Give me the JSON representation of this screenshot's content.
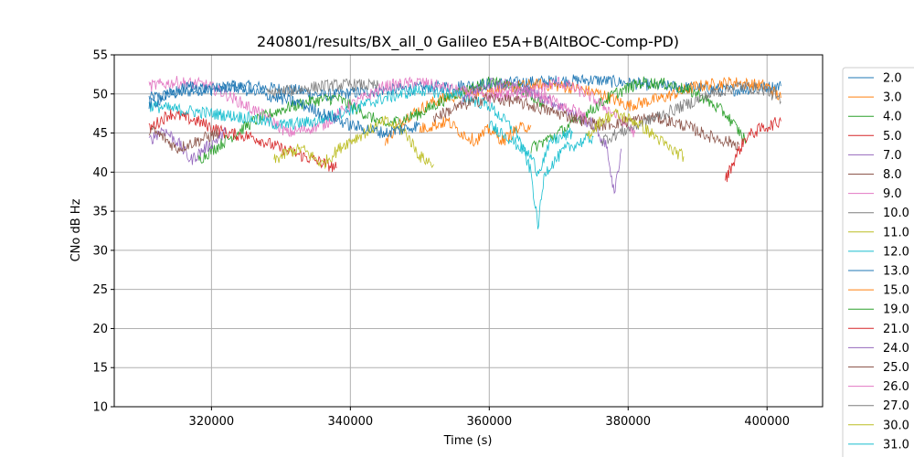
{
  "chart_data": {
    "type": "line",
    "title": "240801/results/BX_all_0 Galileo E5A+B(AltBOC-Comp-PD)",
    "xlabel": "Time (s)",
    "ylabel": "CNo dB Hz",
    "xlim": [
      306000,
      408000
    ],
    "ylim": [
      10,
      55
    ],
    "xticks": [
      320000,
      340000,
      360000,
      380000,
      400000
    ],
    "xtick_labels": [
      "320000",
      "340000",
      "360000",
      "380000",
      "400000"
    ],
    "yticks": [
      10,
      15,
      20,
      25,
      30,
      35,
      40,
      45,
      50,
      55
    ],
    "ytick_labels": [
      "10",
      "15",
      "20",
      "25",
      "30",
      "35",
      "40",
      "45",
      "50",
      "55"
    ],
    "grid": true,
    "legend_position": "right (outside, clipped)",
    "series": [
      {
        "name": "2.0",
        "color": "#1f77b4",
        "x": [
          311000,
          318000,
          325000,
          332000,
          336000,
          345000,
          355000,
          365000,
          375000,
          385000,
          395000,
          402000
        ],
        "y": [
          49.5,
          50.5,
          51.0,
          50.5,
          49.8,
          50.5,
          51.0,
          51.5,
          51.8,
          51.0,
          50.5,
          51.0
        ]
      },
      {
        "name": "3.0",
        "color": "#ff7f0e",
        "x": [
          345000,
          348000,
          352000,
          356000,
          360000,
          364000,
          368000,
          372000,
          376000,
          380000,
          385000,
          390000,
          395000,
          400000,
          402000
        ],
        "y": [
          44.0,
          47.0,
          49.0,
          50.0,
          50.5,
          51.0,
          51.2,
          50.8,
          50.0,
          48.5,
          49.5,
          51.0,
          51.5,
          51.0,
          49.5
        ]
      },
      {
        "name": "4.0",
        "color": "#2ca02c",
        "x": [
          318000,
          322000,
          326000,
          330000,
          334000,
          338000,
          341000,
          345000,
          350000,
          355000,
          360000,
          365000,
          368000
        ],
        "y": [
          41.5,
          44.0,
          46.5,
          48.0,
          49.0,
          49.5,
          48.0,
          46.0,
          47.5,
          50.0,
          51.5,
          50.5,
          48.5
        ]
      },
      {
        "name": "5.0",
        "color": "#d62728",
        "x": [
          311000,
          314000,
          318000,
          322000,
          326000,
          330000,
          335000,
          338000
        ],
        "y": [
          45.5,
          47.5,
          46.5,
          45.0,
          44.5,
          43.0,
          41.5,
          40.5
        ]
      },
      {
        "name": "7.0",
        "color": "#9467bd",
        "x": [
          311000,
          313000,
          315000,
          317000,
          319000,
          322000
        ],
        "y": [
          44.0,
          45.5,
          44.0,
          41.5,
          43.0,
          45.0
        ]
      },
      {
        "name": "8.0",
        "color": "#8c564b",
        "x": [
          311000,
          313000,
          315000,
          318000,
          321000
        ],
        "y": [
          45.5,
          44.5,
          43.0,
          44.0,
          45.0
        ]
      },
      {
        "name": "9.0",
        "color": "#e377c2",
        "x": [
          311000,
          315000,
          319000,
          322000,
          325000,
          328000,
          331000,
          336000,
          340000,
          345000,
          350000,
          355000,
          360000,
          365000,
          370000,
          374000,
          378000,
          381000
        ],
        "y": [
          51.0,
          51.5,
          51.2,
          50.0,
          48.5,
          47.0,
          45.0,
          46.0,
          48.5,
          51.0,
          51.5,
          50.5,
          49.5,
          50.0,
          51.5,
          50.0,
          47.5,
          45.0
        ]
      },
      {
        "name": "10.0",
        "color": "#7f7f7f",
        "x": [
          328000,
          332000,
          336000,
          340000,
          344000
        ],
        "y": [
          50.0,
          50.5,
          51.0,
          51.2,
          51.0
        ]
      },
      {
        "name": "11.0",
        "color": "#bcbd22",
        "x": [
          329000,
          331000,
          333000,
          336000,
          339000,
          342000,
          345000,
          348000,
          350000,
          352000
        ],
        "y": [
          41.5,
          42.5,
          43.0,
          41.0,
          43.5,
          45.0,
          46.5,
          45.0,
          42.0,
          41.0
        ]
      },
      {
        "name": "12.0",
        "color": "#17becf",
        "x": [
          311000,
          315000,
          320000,
          325000,
          330000,
          335000,
          340000,
          345000,
          350000,
          355000,
          360000,
          364000,
          366000,
          367000,
          368000,
          371000,
          375000
        ],
        "y": [
          48.5,
          48.0,
          47.5,
          47.0,
          46.0,
          46.5,
          48.0,
          49.5,
          50.5,
          50.0,
          48.5,
          45.0,
          40.0,
          33.0,
          40.0,
          43.0,
          44.5
        ]
      },
      {
        "name": "13.0",
        "color": "#1f77b4",
        "x": [
          311000,
          314000,
          317000,
          320000,
          323000,
          327000,
          332000,
          336000,
          340000,
          345000,
          350000
        ],
        "y": [
          48.5,
          50.0,
          51.0,
          50.5,
          51.0,
          50.0,
          49.0,
          47.5,
          46.0,
          45.0,
          46.0
        ]
      },
      {
        "name": "15.0",
        "color": "#ff7f0e",
        "x": [
          350000,
          352000,
          354000,
          356000,
          358000,
          360000,
          362000,
          364000,
          366000
        ],
        "y": [
          45.5,
          46.0,
          46.5,
          45.0,
          44.0,
          45.5,
          44.0,
          45.5,
          46.0
        ]
      },
      {
        "name": "19.0",
        "color": "#2ca02c",
        "x": [
          366000,
          370000,
          374000,
          378000,
          382000,
          386000,
          390000,
          394000,
          397000
        ],
        "y": [
          43.0,
          45.0,
          47.5,
          50.0,
          51.5,
          51.2,
          50.0,
          47.5,
          44.0
        ]
      },
      {
        "name": "21.0",
        "color": "#d62728",
        "x": [
          394000,
          395500,
          397000,
          399000,
          402000
        ],
        "y": [
          39.0,
          42.0,
          44.5,
          45.5,
          46.5
        ]
      },
      {
        "name": "24.0",
        "color": "#9467bd",
        "x": [
          356000,
          360000,
          364000,
          368000,
          372000,
          375000,
          377000,
          378000,
          379000
        ],
        "y": [
          49.5,
          51.5,
          51.0,
          49.5,
          47.5,
          46.0,
          43.0,
          37.0,
          43.0
        ]
      },
      {
        "name": "25.0",
        "color": "#8c564b",
        "x": [
          352000,
          356000,
          360000,
          364000,
          368000,
          372000,
          376000,
          380000,
          384000,
          388000,
          392000,
          396000
        ],
        "y": [
          47.0,
          48.5,
          49.5,
          49.0,
          48.0,
          47.0,
          46.0,
          46.5,
          47.0,
          46.0,
          44.5,
          43.5
        ]
      },
      {
        "name": "26.0",
        "color": "#e377c2",
        "x": [
          360000,
          364000,
          368000,
          372000,
          374000
        ],
        "y": [
          50.0,
          50.5,
          49.5,
          48.0,
          47.0
        ]
      },
      {
        "name": "27.0",
        "color": "#7f7f7f",
        "x": [
          376000,
          380000,
          384000,
          388000,
          392000,
          396000,
          400000,
          402000
        ],
        "y": [
          44.0,
          45.5,
          47.0,
          48.5,
          50.0,
          51.0,
          50.5,
          49.0
        ]
      },
      {
        "name": "30.0",
        "color": "#bcbd22",
        "x": [
          374000,
          376000,
          378000,
          381000,
          384000,
          386000,
          388000
        ],
        "y": [
          44.5,
          46.5,
          47.5,
          46.5,
          44.5,
          43.0,
          42.0
        ]
      },
      {
        "name": "31.0",
        "color": "#17becf",
        "x": [
          360000,
          362000,
          364000,
          366000,
          367000,
          368000,
          369000,
          372000
        ],
        "y": [
          46.0,
          45.0,
          43.5,
          42.0,
          40.0,
          42.0,
          44.0,
          45.0
        ]
      }
    ]
  }
}
